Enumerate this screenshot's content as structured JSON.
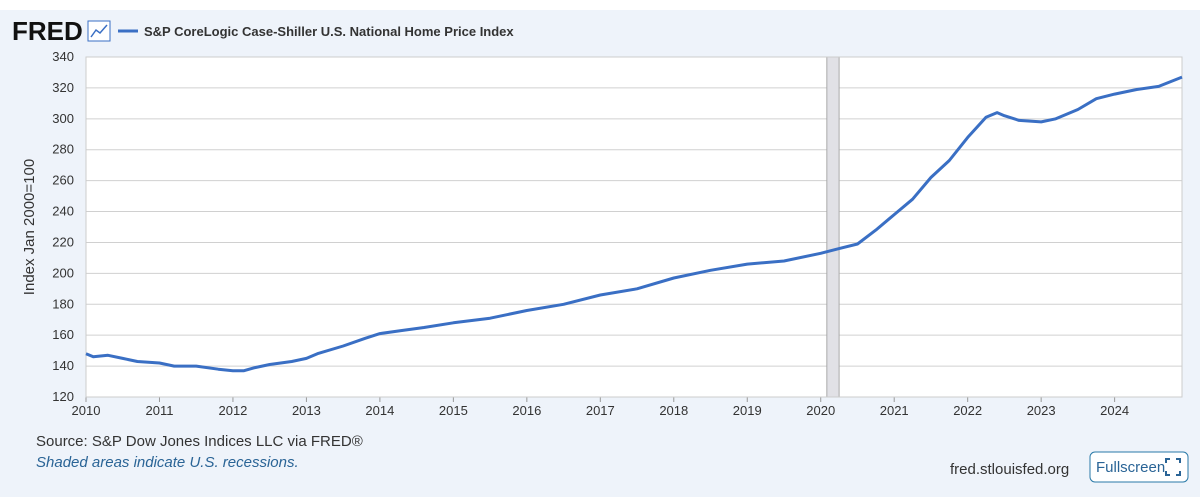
{
  "logo": "FRED",
  "chart_data": {
    "type": "line",
    "x": [
      2010.0,
      2010.1,
      2010.3,
      2010.5,
      2010.7,
      2011.0,
      2011.2,
      2011.5,
      2011.8,
      2012.0,
      2012.15,
      2012.3,
      2012.5,
      2012.8,
      2013.0,
      2013.15,
      2013.5,
      2013.8,
      2014.0,
      2014.3,
      2014.6,
      2015.0,
      2015.5,
      2016.0,
      2016.5,
      2017.0,
      2017.5,
      2018.0,
      2018.5,
      2019.0,
      2019.5,
      2020.0,
      2020.25,
      2020.5,
      2020.75,
      2021.0,
      2021.25,
      2021.5,
      2021.75,
      2022.0,
      2022.25,
      2022.4,
      2022.5,
      2022.7,
      2023.0,
      2023.2,
      2023.5,
      2023.75,
      2024.0,
      2024.3,
      2024.6,
      2024.917
    ],
    "series": [
      {
        "name": "S&P CoreLogic Case-Shiller U.S. National Home Price Index",
        "color": "#3a6fc4",
        "values": [
          148,
          146,
          147,
          145,
          143,
          142,
          140,
          140,
          138,
          137,
          137,
          139,
          141,
          143,
          145,
          148,
          153,
          158,
          161,
          163,
          165,
          168,
          171,
          176,
          180,
          186,
          190,
          197,
          202,
          206,
          208,
          213,
          216,
          219,
          228,
          238,
          248,
          262,
          273,
          288,
          301,
          304,
          302,
          299,
          298,
          300,
          306,
          313,
          316,
          319,
          321,
          327
        ]
      }
    ],
    "y_label": "Index Jan 2000=100",
    "xlim": [
      2010,
      2024.917
    ],
    "xticks": [
      2010,
      2011,
      2012,
      2013,
      2014,
      2015,
      2016,
      2017,
      2018,
      2019,
      2020,
      2021,
      2022,
      2023,
      2024
    ],
    "ylim": [
      120,
      340
    ],
    "yticks": [
      120,
      140,
      160,
      180,
      200,
      220,
      240,
      260,
      280,
      300,
      320,
      340
    ],
    "recessions": [
      [
        2020.083,
        2020.25
      ]
    ],
    "grid": true
  },
  "source": "Source: S&P Dow Jones Indices LLC via FRED®",
  "note": "Shaded areas indicate U.S. recessions.",
  "url": "fred.stlouisfed.org",
  "button": "Fullscreen"
}
